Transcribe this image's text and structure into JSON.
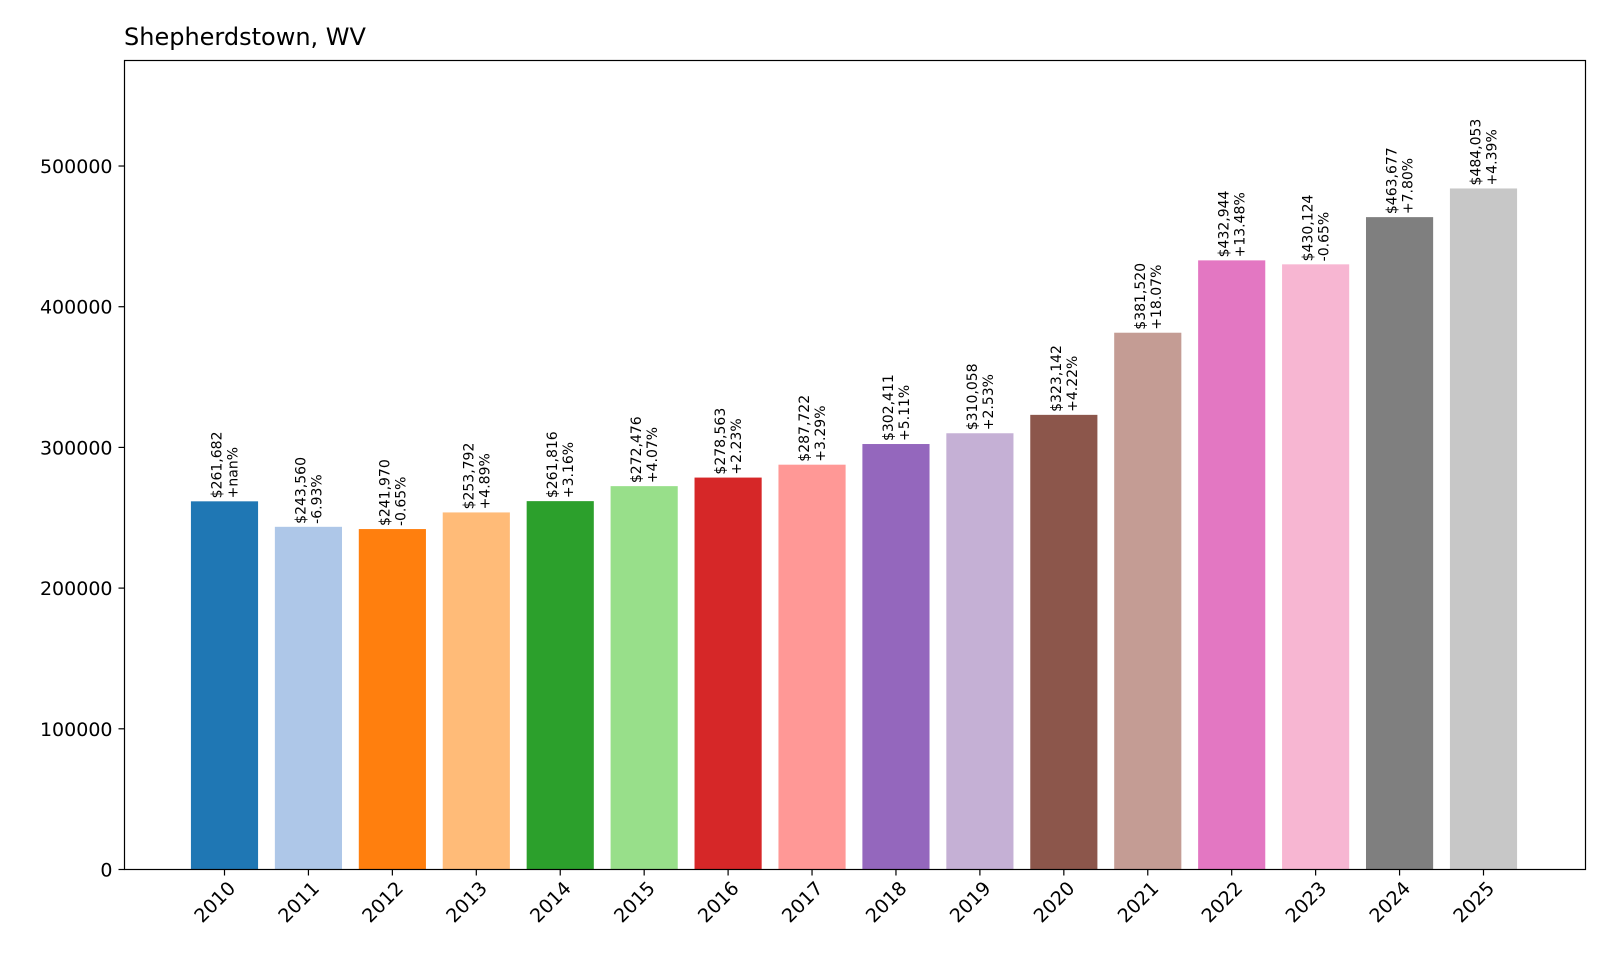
{
  "chart_data": {
    "type": "bar",
    "title": "Shepherdstown, WV",
    "xlabel": "",
    "ylabel": "",
    "ylim": [
      0,
      575000
    ],
    "yticks": [
      0,
      100000,
      200000,
      300000,
      400000,
      500000
    ],
    "ytick_labels": [
      "0",
      "100000",
      "200000",
      "300000",
      "400000",
      "500000"
    ],
    "grid": false,
    "categories": [
      "2010",
      "2011",
      "2012",
      "2013",
      "2014",
      "2015",
      "2016",
      "2017",
      "2018",
      "2019",
      "2020",
      "2021",
      "2022",
      "2023",
      "2024",
      "2025"
    ],
    "values": [
      261682,
      243560,
      241970,
      253792,
      261816,
      272476,
      278563,
      287722,
      302411,
      310058,
      323142,
      381520,
      432944,
      430124,
      463677,
      484053
    ],
    "value_labels": [
      "$261,682",
      "$243,560",
      "$241,970",
      "$253,792",
      "$261,816",
      "$272,476",
      "$278,563",
      "$287,722",
      "$302,411",
      "$310,058",
      "$323,142",
      "$381,520",
      "$432,944",
      "$430,124",
      "$463,677",
      "$484,053"
    ],
    "change_labels": [
      "+nan%",
      "-6.93%",
      "-0.65%",
      "+4.89%",
      "+3.16%",
      "+4.07%",
      "+2.23%",
      "+3.29%",
      "+5.11%",
      "+2.53%",
      "+4.22%",
      "+18.07%",
      "+13.48%",
      "-0.65%",
      "+7.80%",
      "+4.39%"
    ],
    "colors": [
      "#1f77b4",
      "#aec7e8",
      "#ff7f0e",
      "#ffbb78",
      "#2ca02c",
      "#98df8a",
      "#d62728",
      "#ff9896",
      "#9467bd",
      "#c5b0d5",
      "#8c564b",
      "#c49c94",
      "#e377c2",
      "#f7b6d2",
      "#7f7f7f",
      "#c7c7c7"
    ]
  }
}
